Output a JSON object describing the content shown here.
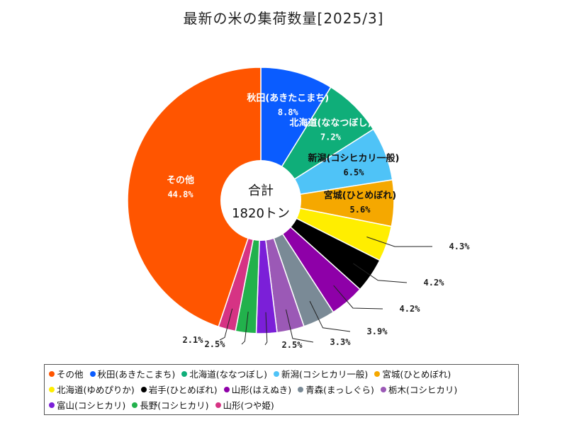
{
  "chart_data": {
    "type": "pie",
    "style": "donut",
    "title": "最新の米の集荷数量[2025/3]",
    "center_label": {
      "line1": "合計",
      "line2": "1820トン"
    },
    "slices": [
      {
        "name": "秋田(あきたこまち)",
        "label": "秋田(あきたこまち)",
        "percent": 8.8,
        "percent_label": "8.8%",
        "color": "#0a5cff",
        "label_inside": true,
        "label_color": "#ffffff"
      },
      {
        "name": "北海道(ななつぼし)",
        "label": "北海道(ななつぼし)",
        "percent": 7.2,
        "percent_label": "7.2%",
        "color": "#0fae79",
        "label_inside": true,
        "label_color": "#ffffff"
      },
      {
        "name": "新潟(コシヒカリ一般)",
        "label": "新潟(コシヒカリ一般)",
        "percent": 6.5,
        "percent_label": "6.5%",
        "color": "#4fc3f7",
        "label_inside": true,
        "label_color": "#111111"
      },
      {
        "name": "宮城(ひとめぼれ)",
        "label": "宮城(ひとめぼれ)",
        "percent": 5.6,
        "percent_label": "5.6%",
        "color": "#f5a800",
        "label_inside": true,
        "label_color": "#111111"
      },
      {
        "name": "北海道(ゆめぴりか)",
        "label": "",
        "percent": 4.3,
        "percent_label": "4.3%",
        "color": "#ffee00",
        "label_inside": false
      },
      {
        "name": "岩手(ひとめぼれ)",
        "label": "",
        "percent": 4.2,
        "percent_label": "4.2%",
        "color": "#000000",
        "label_inside": false
      },
      {
        "name": "山形(はえぬき)",
        "label": "",
        "percent": 4.2,
        "percent_label": "4.2%",
        "color": "#8e00a8",
        "label_inside": false
      },
      {
        "name": "青森(まっしぐら)",
        "label": "",
        "percent": 3.9,
        "percent_label": "3.9%",
        "color": "#7a8a96",
        "label_inside": false
      },
      {
        "name": "栃木(コシヒカリ)",
        "label": "",
        "percent": 3.3,
        "percent_label": "3.3%",
        "color": "#9b59b6",
        "label_inside": false
      },
      {
        "name": "富山(コシヒカリ)",
        "label": "",
        "percent": 2.5,
        "percent_label": "2.5%",
        "color": "#7b1fd8",
        "label_inside": false
      },
      {
        "name": "長野(コシヒカリ)",
        "label": "",
        "percent": 2.5,
        "percent_label": "2.5%",
        "color": "#22b14c",
        "label_inside": false
      },
      {
        "name": "山形(つや姫)",
        "label": "",
        "percent": 2.1,
        "percent_label": "2.1%",
        "color": "#d63384",
        "label_inside": false
      },
      {
        "name": "その他",
        "label": "その他",
        "percent": 44.8,
        "percent_label": "44.8%",
        "color": "#ff5500",
        "label_inside": true,
        "label_color": "#ffffff"
      }
    ],
    "legend": {
      "rows": [
        [
          {
            "label": "その他",
            "color": "#ff5500"
          },
          {
            "label": "秋田(あきたこまち)",
            "color": "#0a5cff"
          },
          {
            "label": "北海道(ななつぼし)",
            "color": "#0fae79"
          },
          {
            "label": "新潟(コシヒカリ一般)",
            "color": "#4fc3f7"
          },
          {
            "label": "宮城(ひとめぼれ)",
            "color": "#f5a800"
          }
        ],
        [
          {
            "label": "北海道(ゆめぴりか)",
            "color": "#ffee00"
          },
          {
            "label": "岩手(ひとめぼれ)",
            "color": "#000000"
          },
          {
            "label": "山形(はえぬき)",
            "color": "#8e00a8"
          },
          {
            "label": "青森(まっしぐら)",
            "color": "#7a8a96"
          },
          {
            "label": "栃木(コシヒカリ)",
            "color": "#9b59b6"
          }
        ],
        [
          {
            "label": "富山(コシヒカリ)",
            "color": "#7b1fd8"
          },
          {
            "label": "長野(コシヒカリ)",
            "color": "#22b14c"
          },
          {
            "label": "山形(つや姫)",
            "color": "#d63384"
          }
        ]
      ]
    }
  }
}
